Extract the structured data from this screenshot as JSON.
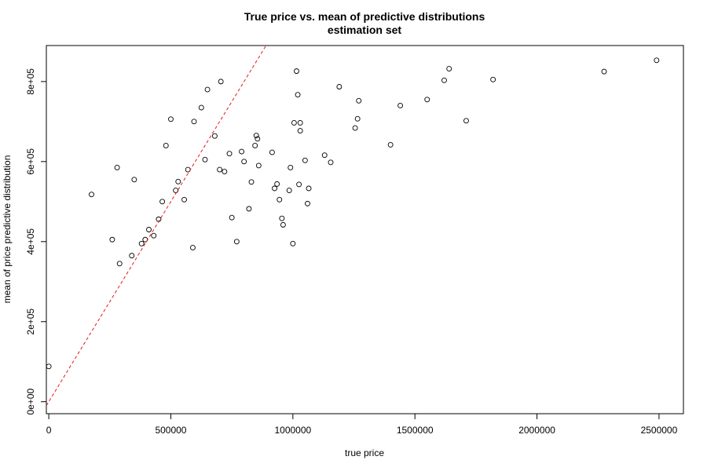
{
  "chart_data": {
    "type": "scatter",
    "title": "True price vs. mean of predictive distributions",
    "subtitle": "estimation set",
    "xlabel": "true price",
    "ylabel": "mean of price predictive distribution",
    "xlim": [
      -10000,
      2600000
    ],
    "ylim": [
      -30000,
      890000
    ],
    "x_ticks": [
      0,
      500000,
      1000000,
      1500000,
      2000000,
      2500000
    ],
    "x_tick_labels": [
      "0",
      "500000",
      "1000000",
      "1500000",
      "2000000",
      "2500000"
    ],
    "y_ticks": [
      0,
      200000,
      400000,
      600000,
      800000
    ],
    "y_tick_labels": [
      "0e+00",
      "2e+05",
      "4e+05",
      "6e+05",
      "8e+05"
    ],
    "grid": false,
    "reference_line": {
      "slope": 1,
      "intercept": 0,
      "color": "#e41a1c",
      "style": "dashed"
    },
    "series": [
      {
        "x": [
          2490000,
          2275000,
          1820000,
          1710000,
          1640000,
          1620000,
          1550000,
          1440000,
          1400000,
          1270000,
          1265000,
          1255000,
          1190000,
          1155000,
          1130000,
          1065000,
          1060000,
          1050000,
          1030000,
          1030000,
          1020000,
          1015000,
          1005000,
          1000000,
          990000,
          985000,
          1025000,
          960000,
          955000,
          945000,
          935000,
          925000,
          915000,
          860000,
          855000,
          850000,
          845000,
          830000,
          820000,
          800000,
          790000,
          770000,
          750000,
          740000,
          720000,
          705000,
          700000,
          680000,
          650000,
          640000,
          625000,
          595000,
          590000,
          570000,
          555000,
          530000,
          520000,
          500000,
          480000,
          465000,
          450000,
          430000,
          410000,
          395000,
          380000,
          350000,
          340000,
          290000,
          280000,
          260000,
          175000,
          0
        ],
        "y": [
          853000,
          825000,
          805000,
          702000,
          832000,
          803000,
          755000,
          740000,
          642000,
          752000,
          707000,
          684000,
          787000,
          598000,
          616000,
          533000,
          495000,
          603000,
          697000,
          677000,
          767000,
          826000,
          697000,
          395000,
          585000,
          528000,
          543000,
          442000,
          458000,
          505000,
          544000,
          533000,
          623000,
          590000,
          657000,
          665000,
          640000,
          549000,
          482000,
          600000,
          625000,
          400000,
          460000,
          620000,
          575000,
          800000,
          580000,
          664000,
          780000,
          605000,
          735000,
          700000,
          385000,
          580000,
          505000,
          550000,
          528000,
          706000,
          640000,
          500000,
          456000,
          415000,
          430000,
          405000,
          395000,
          555000,
          365000,
          345000,
          585000,
          405000,
          518000,
          88000
        ]
      }
    ]
  }
}
